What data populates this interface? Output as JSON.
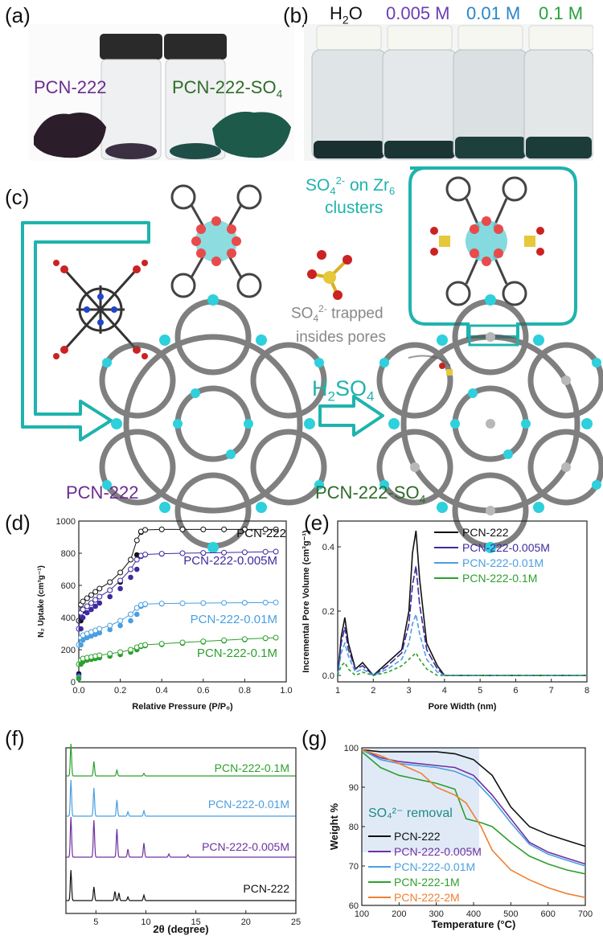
{
  "panels": {
    "a": "(a)",
    "b": "(b)",
    "c": "(c)",
    "d": "(d)",
    "e": "(e)",
    "f": "(f)",
    "g": "(g)"
  },
  "panel_a": {
    "left_label": "PCN-222",
    "right_label_main": "PCN-222-SO",
    "right_label_sub": "4",
    "left_color": "#6b2d8f",
    "right_color": "#2f6b2a"
  },
  "panel_b": {
    "labels": [
      {
        "main": "H",
        "sub": "2",
        "tail": "O",
        "color": "#111111"
      },
      {
        "main": "0.005 M",
        "color": "#6b3fb2"
      },
      {
        "main": "0.01 M",
        "color": "#2a86c8"
      },
      {
        "main": "0.1 M",
        "color": "#27a23c"
      }
    ]
  },
  "panel_c": {
    "so4_label_1": "SO",
    "so4_label_sub": "4",
    "so4_label_sup": "2-",
    "so4_label_2": " on Zr",
    "so4_label_sub2": "6",
    "so4_label_3": "clusters",
    "trapped_1_main": "SO",
    "trapped_1_sub": "4",
    "trapped_1_sup": "2-",
    "trapped_1_tail": " trapped",
    "trapped_2": "insides pores",
    "arrow_main": "H",
    "arrow_sub": "2",
    "arrow_tail": "SO",
    "arrow_sub2": "4",
    "left_name": "PCN-222",
    "right_name_main": "PCN-222-SO",
    "right_name_sub": "4",
    "accent": "#1fb3ad"
  },
  "chart_data": [
    {
      "panel": "d",
      "type": "scatter",
      "xlabel": "Relative Pressure (P/P₀)",
      "ylabel": "N₂ Uptake (cm³g⁻¹)",
      "xlim": [
        0,
        1.0
      ],
      "ylim": [
        0,
        1000
      ],
      "xticks": [
        "0.0",
        "0.2",
        "0.4",
        "0.6",
        "0.8",
        "1.0"
      ],
      "yticks": [
        "0",
        "200",
        "400",
        "600",
        "800",
        "1000"
      ],
      "series": [
        {
          "name": "PCN-222",
          "color": "#111111",
          "x": [
            0.0,
            0.01,
            0.02,
            0.04,
            0.06,
            0.08,
            0.1,
            0.15,
            0.2,
            0.25,
            0.28,
            0.3,
            0.32,
            0.4,
            0.5,
            0.6,
            0.7,
            0.8,
            0.9,
            0.95
          ],
          "y": [
            50,
            380,
            440,
            470,
            490,
            510,
            530,
            570,
            620,
            700,
            790,
            930,
            945,
            948,
            948,
            948,
            948,
            948,
            948,
            948
          ],
          "desorption_y": [
            380,
            480,
            500,
            520,
            540,
            560,
            580,
            620,
            680,
            760,
            880,
            935,
            945,
            948,
            948,
            948,
            948,
            948,
            948,
            948
          ]
        },
        {
          "name": "PCN-222-0.005M",
          "color": "#3f2a9f",
          "x": [
            0.0,
            0.01,
            0.02,
            0.04,
            0.06,
            0.08,
            0.1,
            0.15,
            0.2,
            0.25,
            0.28,
            0.3,
            0.32,
            0.4,
            0.5,
            0.6,
            0.7,
            0.8,
            0.9,
            0.95
          ],
          "y": [
            40,
            330,
            400,
            430,
            450,
            470,
            490,
            530,
            580,
            650,
            700,
            780,
            790,
            795,
            800,
            800,
            802,
            805,
            808,
            810
          ],
          "desorption_y": [
            330,
            430,
            450,
            470,
            490,
            510,
            530,
            570,
            630,
            700,
            760,
            785,
            792,
            797,
            800,
            802,
            804,
            806,
            809,
            810
          ]
        },
        {
          "name": "PCN-222-0.01M",
          "color": "#4a9fe0",
          "x": [
            0.0,
            0.01,
            0.02,
            0.04,
            0.06,
            0.08,
            0.1,
            0.15,
            0.2,
            0.25,
            0.28,
            0.3,
            0.32,
            0.4,
            0.5,
            0.6,
            0.7,
            0.8,
            0.9,
            0.95
          ],
          "y": [
            30,
            230,
            260,
            275,
            285,
            295,
            305,
            325,
            350,
            380,
            420,
            470,
            480,
            485,
            488,
            490,
            491,
            492,
            493,
            494
          ],
          "desorption_y": [
            230,
            275,
            290,
            300,
            310,
            320,
            330,
            350,
            380,
            420,
            460,
            478,
            484,
            487,
            489,
            490,
            491,
            492,
            493,
            494
          ]
        },
        {
          "name": "PCN-222-0.1M",
          "color": "#2ca02c",
          "x": [
            0.0,
            0.01,
            0.02,
            0.04,
            0.06,
            0.08,
            0.1,
            0.15,
            0.2,
            0.25,
            0.28,
            0.3,
            0.32,
            0.4,
            0.5,
            0.6,
            0.7,
            0.8,
            0.9,
            0.95
          ],
          "y": [
            20,
            110,
            125,
            135,
            140,
            145,
            150,
            160,
            170,
            185,
            200,
            220,
            225,
            232,
            240,
            248,
            255,
            262,
            270,
            275
          ],
          "desorption_y": [
            110,
            135,
            145,
            150,
            155,
            160,
            165,
            175,
            185,
            200,
            215,
            225,
            230,
            237,
            245,
            252,
            259,
            266,
            272,
            275
          ]
        }
      ]
    },
    {
      "panel": "e",
      "type": "line",
      "xlabel": "Pore Width (nm)",
      "ylabel": "Incremental Pore Volume (cm³g⁻¹)",
      "xlim": [
        1,
        8
      ],
      "ylim": [
        -0.02,
        0.48
      ],
      "xticks": [
        "1",
        "2",
        "3",
        "4",
        "5",
        "6",
        "7",
        "8"
      ],
      "yticks": [
        "0.0",
        "0.2",
        "0.4"
      ],
      "series": [
        {
          "name": "PCN-222",
          "color": "#111111",
          "x": [
            1.0,
            1.1,
            1.2,
            1.3,
            1.5,
            1.7,
            2.0,
            2.4,
            2.8,
            3.0,
            3.1,
            3.2,
            3.3,
            3.5,
            3.8,
            4.0,
            4.5,
            8.0
          ],
          "y": [
            0.0,
            0.12,
            0.18,
            0.1,
            0.02,
            0.04,
            0.0,
            0.04,
            0.08,
            0.2,
            0.38,
            0.45,
            0.3,
            0.1,
            0.03,
            0.0,
            0.0,
            0.0
          ]
        },
        {
          "name": "PCN-222-0.005M",
          "color": "#3f2a9f",
          "x": [
            1.0,
            1.1,
            1.2,
            1.3,
            1.5,
            1.7,
            2.0,
            2.4,
            2.8,
            3.0,
            3.1,
            3.2,
            3.3,
            3.5,
            3.8,
            4.0,
            4.5,
            8.0
          ],
          "y": [
            0.0,
            0.1,
            0.15,
            0.08,
            0.02,
            0.03,
            0.0,
            0.03,
            0.07,
            0.16,
            0.28,
            0.34,
            0.22,
            0.08,
            0.02,
            0.0,
            0.0,
            0.0
          ]
        },
        {
          "name": "PCN-222-0.01M",
          "color": "#4a9fe0",
          "x": [
            1.0,
            1.1,
            1.2,
            1.3,
            1.5,
            1.7,
            2.0,
            2.4,
            2.8,
            3.0,
            3.1,
            3.2,
            3.3,
            3.5,
            3.8,
            4.0,
            4.5,
            8.0
          ],
          "y": [
            0.0,
            0.07,
            0.1,
            0.06,
            0.01,
            0.02,
            0.0,
            0.02,
            0.05,
            0.1,
            0.16,
            0.19,
            0.13,
            0.05,
            0.01,
            0.0,
            0.0,
            0.0
          ]
        },
        {
          "name": "PCN-222-0.1M",
          "color": "#2ca02c",
          "x": [
            1.0,
            1.1,
            1.2,
            1.3,
            1.5,
            1.7,
            2.0,
            2.4,
            2.8,
            3.0,
            3.1,
            3.2,
            3.3,
            3.5,
            3.8,
            4.0,
            4.5,
            8.0
          ],
          "y": [
            0.0,
            0.03,
            0.04,
            0.02,
            0.0,
            0.01,
            0.0,
            0.01,
            0.03,
            0.05,
            0.06,
            0.07,
            0.05,
            0.02,
            0.0,
            0.0,
            0.0,
            0.0
          ]
        }
      ]
    },
    {
      "panel": "f",
      "type": "line",
      "xlabel": "2θ (degree)",
      "xlim": [
        2,
        25
      ],
      "xticks": [
        "5",
        "10",
        "15",
        "20",
        "25"
      ],
      "series": [
        {
          "name": "PCN-222-0.1M",
          "color": "#2ca02c",
          "peaks": [
            [
              2.5,
              1.0
            ],
            [
              4.8,
              0.45
            ],
            [
              7.1,
              0.18
            ],
            [
              9.8,
              0.08
            ]
          ]
        },
        {
          "name": "PCN-222-0.01M",
          "color": "#4a9fe0",
          "peaks": [
            [
              2.5,
              1.0
            ],
            [
              4.8,
              0.78
            ],
            [
              7.1,
              0.45
            ],
            [
              8.2,
              0.12
            ],
            [
              9.8,
              0.15
            ]
          ]
        },
        {
          "name": "PCN-222-0.005M",
          "color": "#7030a0",
          "peaks": [
            [
              2.5,
              1.0
            ],
            [
              4.8,
              0.92
            ],
            [
              7.1,
              0.7
            ],
            [
              8.2,
              0.2
            ],
            [
              9.8,
              0.35
            ],
            [
              12.3,
              0.08
            ],
            [
              14.2,
              0.06
            ]
          ]
        },
        {
          "name": "PCN-222",
          "color": "#111111",
          "peaks": [
            [
              2.5,
              1.0
            ],
            [
              4.8,
              0.45
            ],
            [
              6.9,
              0.3
            ],
            [
              7.3,
              0.25
            ],
            [
              8.2,
              0.12
            ],
            [
              9.8,
              0.18
            ]
          ]
        }
      ]
    },
    {
      "panel": "g",
      "type": "line",
      "xlabel": "Temperature (°C)",
      "ylabel": "Weight %",
      "xlim": [
        100,
        700
      ],
      "ylim": [
        60,
        100
      ],
      "xticks": [
        "100",
        "200",
        "300",
        "400",
        "500",
        "600",
        "700"
      ],
      "yticks": [
        "60",
        "70",
        "80",
        "90",
        "100"
      ],
      "annotation": "SO₄²⁻ removal",
      "series": [
        {
          "name": "PCN-222",
          "color": "#111111",
          "x": [
            100,
            150,
            200,
            300,
            350,
            400,
            450,
            500,
            550,
            600,
            650,
            700
          ],
          "y": [
            99.5,
            99.0,
            99.0,
            99.0,
            98.5,
            97.0,
            93.0,
            85.0,
            80.0,
            78.0,
            76.5,
            75.0
          ]
        },
        {
          "name": "PCN-222-0.005M",
          "color": "#7030a0",
          "x": [
            100,
            150,
            200,
            300,
            350,
            400,
            450,
            500,
            550,
            600,
            650,
            700
          ],
          "y": [
            99.5,
            97.5,
            96.5,
            95.5,
            95.0,
            93.0,
            88.0,
            82.0,
            76.0,
            73.5,
            72.0,
            70.5
          ]
        },
        {
          "name": "PCN-222-0.01M",
          "color": "#4a9fe0",
          "x": [
            100,
            150,
            200,
            300,
            350,
            400,
            450,
            500,
            550,
            600,
            650,
            700
          ],
          "y": [
            99.5,
            97.0,
            96.0,
            95.0,
            94.0,
            92.0,
            87.0,
            81.0,
            75.5,
            73.0,
            71.5,
            70.0
          ]
        },
        {
          "name": "PCN-222-1M",
          "color": "#2ca02c",
          "x": [
            100,
            150,
            200,
            300,
            350,
            380,
            420,
            450,
            500,
            550,
            600,
            650,
            700
          ],
          "y": [
            99.0,
            95.0,
            93.0,
            91.0,
            89.5,
            82.0,
            81.0,
            80.0,
            76.0,
            72.5,
            70.5,
            69.0,
            68.0
          ]
        },
        {
          "name": "PCN-222-2M",
          "color": "#f08030",
          "x": [
            100,
            150,
            200,
            260,
            300,
            350,
            380,
            420,
            450,
            500,
            550,
            600,
            650,
            700
          ],
          "y": [
            99.5,
            98.0,
            96.0,
            93.5,
            90.0,
            88.0,
            86.0,
            80.0,
            74.0,
            69.0,
            66.5,
            64.5,
            63.0,
            62.0
          ]
        }
      ]
    }
  ]
}
